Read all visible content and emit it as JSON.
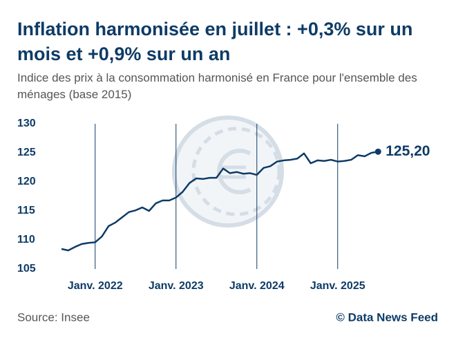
{
  "title": "Inflation harmonisée en juillet : +0,3% sur un mois et +0,9% sur un an",
  "subtitle": "Indice des prix à la consommation harmonisé en France pour l'ensemble des ménages (base 2015)",
  "source": "Source: Insee",
  "credit": "© Data News Feed",
  "chart_data": {
    "type": "line",
    "categories": [
      null,
      null,
      null,
      null,
      null,
      "Janv. 2022",
      null,
      null,
      null,
      null,
      null,
      null,
      null,
      null,
      null,
      null,
      null,
      "Janv. 2023",
      null,
      null,
      null,
      null,
      null,
      null,
      null,
      null,
      null,
      null,
      null,
      "Janv. 2024",
      null,
      null,
      null,
      null,
      null,
      null,
      null,
      null,
      null,
      null,
      null,
      "Janv. 2025",
      null,
      null,
      null,
      null,
      null,
      null
    ],
    "series": [
      {
        "color": "#0e3b66",
        "values": [
          108.45,
          108.2,
          108.8,
          109.3,
          109.5,
          109.6,
          110.6,
          112.4,
          113.0,
          113.9,
          114.8,
          115.1,
          115.6,
          115.0,
          116.3,
          116.8,
          116.8,
          117.3,
          118.3,
          119.8,
          120.6,
          120.5,
          120.7,
          120.7,
          122.3,
          121.5,
          121.7,
          121.4,
          121.5,
          121.2,
          122.4,
          122.7,
          123.5,
          123.7,
          123.8,
          124.0,
          124.9,
          123.2,
          123.7,
          123.6,
          123.8,
          123.5,
          123.6,
          123.8,
          124.6,
          124.4,
          125.0,
          125.2
        ],
        "value_labels": [
          null,
          null,
          null,
          null,
          null,
          null,
          null,
          null,
          null,
          null,
          null,
          null,
          null,
          null,
          null,
          null,
          null,
          null,
          null,
          null,
          null,
          null,
          null,
          null,
          null,
          null,
          null,
          null,
          null,
          null,
          null,
          null,
          null,
          null,
          null,
          null,
          null,
          null,
          null,
          null,
          null,
          null,
          null,
          null,
          null,
          null,
          null,
          "125,20"
        ]
      }
    ],
    "ylim": [
      105,
      130
    ],
    "yticks": [
      105,
      110,
      115,
      120,
      125,
      130
    ],
    "grid": false
  }
}
